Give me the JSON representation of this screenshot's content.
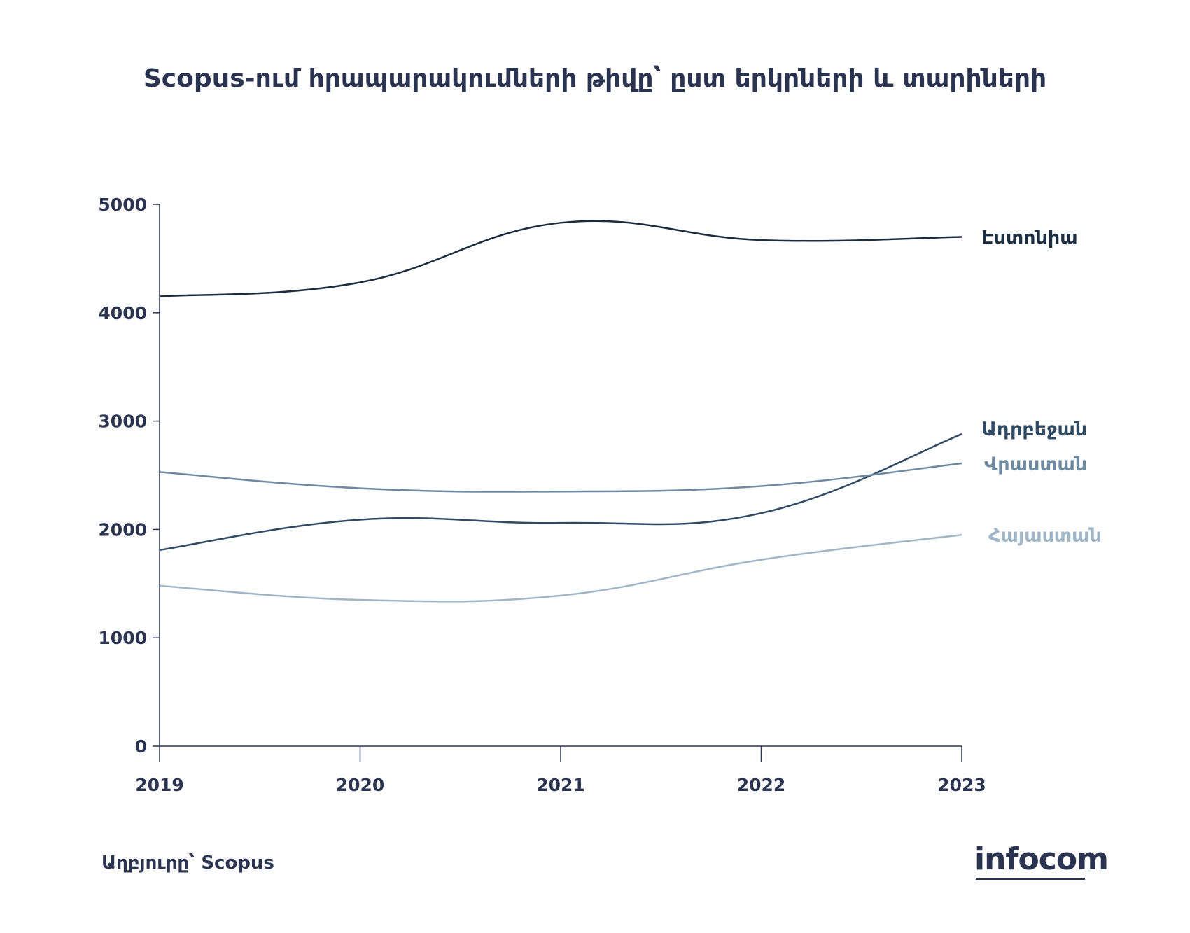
{
  "page_title": "Scopus-ում հրապարակումների թիվը՝ ըստ երկրների և տարիների",
  "source_text": "Աղբյուրը՝ Scopus",
  "logo_text": "infocom",
  "chart_data": {
    "type": "line",
    "title": "Scopus-ում հրապարակումների թիվը՝ ըստ երկրների և տարիների",
    "xlabel": "",
    "ylabel": "",
    "x": [
      "2019",
      "2020",
      "2021",
      "2022",
      "2023"
    ],
    "ylim": [
      0,
      5000
    ],
    "yticks": [
      "0",
      "1000",
      "2000",
      "3000",
      "4000",
      "5000"
    ],
    "grid": false,
    "legend": "direct labels at line ends (right)",
    "series": [
      {
        "name": "Էստոնիա",
        "values": [
          4150,
          4280,
          4830,
          4670,
          4700
        ],
        "color": "#1b2e3f"
      },
      {
        "name": "Ադրբեջան",
        "values": [
          1810,
          2090,
          2060,
          2150,
          2880
        ],
        "color": "#2f4a62"
      },
      {
        "name": "Վրաստան",
        "values": [
          2530,
          2380,
          2350,
          2400,
          2610
        ],
        "color": "#6e8aa1"
      },
      {
        "name": "Հայաստան",
        "values": [
          1480,
          1350,
          1390,
          1720,
          1950
        ],
        "color": "#9fb6c6"
      }
    ]
  }
}
